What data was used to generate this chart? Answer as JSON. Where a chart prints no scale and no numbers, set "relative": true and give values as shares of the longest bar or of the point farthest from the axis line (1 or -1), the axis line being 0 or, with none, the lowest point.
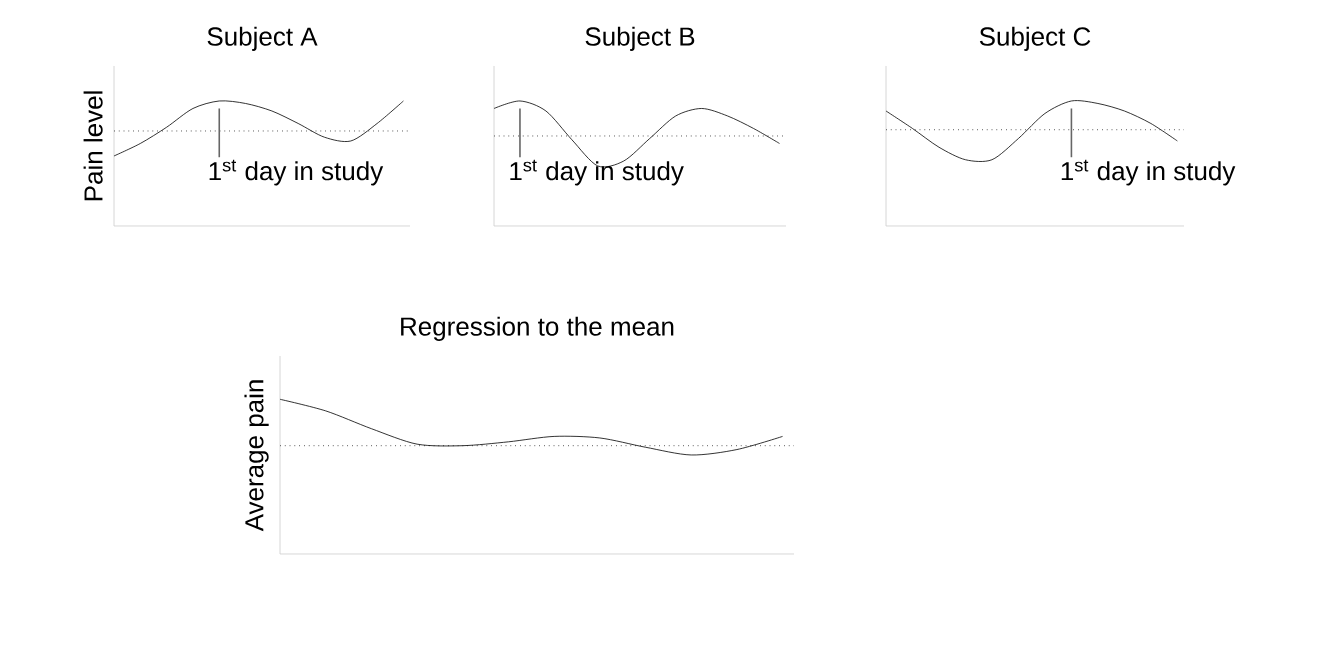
{
  "chart_data": [
    {
      "type": "line",
      "title": "Subject A",
      "ylabel": "Pain level",
      "relative": true,
      "color": "#000000",
      "categories": [
        null,
        null,
        null,
        null,
        null,
        null,
        null,
        null,
        null,
        null,
        null,
        null
      ],
      "values": [
        0.56,
        0.66,
        0.79,
        0.94,
        1.0,
        0.98,
        0.92,
        0.82,
        0.71,
        0.68,
        0.82,
        1.0
      ],
      "ref_lines": [
        {
          "axis": "y",
          "value": 0.76,
          "line_style": "dotted"
        }
      ],
      "annotations": [
        "1$^{st}$ day in study"
      ]
    },
    {
      "type": "line",
      "title": "Subject B",
      "relative": true,
      "color": "#000000",
      "categories": [
        null,
        null,
        null,
        null,
        null,
        null,
        null,
        null,
        null,
        null,
        null,
        null
      ],
      "values": [
        0.94,
        1.0,
        0.92,
        0.69,
        0.48,
        0.52,
        0.7,
        0.88,
        0.94,
        0.88,
        0.78,
        0.66
      ],
      "ref_lines": [
        {
          "axis": "y",
          "value": 0.72,
          "line_style": "dotted"
        }
      ],
      "annotations": [
        "1$^{st}$ day in study"
      ]
    },
    {
      "type": "line",
      "title": "Subject C",
      "relative": true,
      "color": "#000000",
      "categories": [
        null,
        null,
        null,
        null,
        null,
        null,
        null,
        null,
        null,
        null,
        null,
        null
      ],
      "values": [
        0.92,
        0.78,
        0.63,
        0.53,
        0.53,
        0.7,
        0.9,
        1.0,
        0.98,
        0.92,
        0.82,
        0.68
      ],
      "ref_lines": [
        {
          "axis": "y",
          "value": 0.77,
          "line_style": "dotted"
        }
      ],
      "annotations": [
        "1$^{st}$ day in study"
      ]
    },
    {
      "type": "line",
      "title": "Regression to the mean",
      "ylabel": "Average pain",
      "relative": true,
      "color": "#000000",
      "categories": [
        null,
        null,
        null,
        null,
        null,
        null,
        null,
        null,
        null,
        null,
        null,
        null
      ],
      "values": [
        1.0,
        0.925,
        0.81,
        0.71,
        0.7,
        0.725,
        0.76,
        0.75,
        0.69,
        0.64,
        0.675,
        0.76
      ],
      "ref_lines": [
        {
          "axis": "y",
          "value": 0.7,
          "line_style": "dotted"
        }
      ]
    }
  ]
}
